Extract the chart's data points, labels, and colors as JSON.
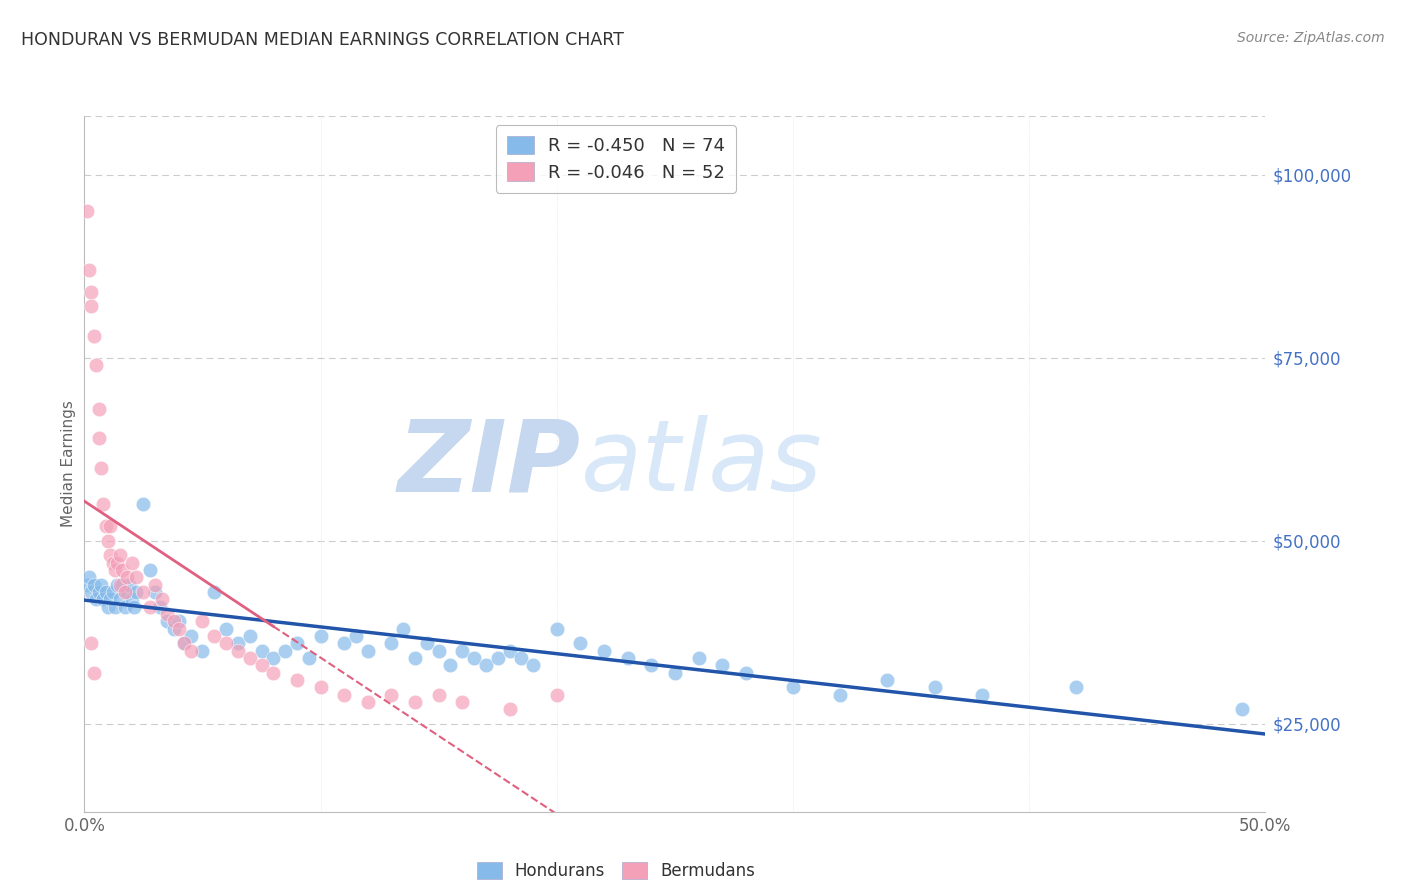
{
  "title": "HONDURAN VS BERMUDAN MEDIAN EARNINGS CORRELATION CHART",
  "source": "Source: ZipAtlas.com",
  "ylabel": "Median Earnings",
  "y_ticks": [
    25000,
    50000,
    75000,
    100000
  ],
  "y_tick_labels": [
    "$25,000",
    "$50,000",
    "$75,000",
    "$100,000"
  ],
  "xlim": [
    0.0,
    0.5
  ],
  "ylim": [
    13000,
    108000
  ],
  "legend_honduran": "R = -0.450   N = 74",
  "legend_bermudan": "R = -0.046   N = 52",
  "honduran_color": "#85BAEA",
  "bermudan_color": "#F4A0B8",
  "honduran_line_color": "#2255AA",
  "bermudan_line_color": "#E06080",
  "watermark_zip": "ZIP",
  "watermark_atlas": "atlas",
  "watermark_color": "#C5D8F0",
  "honduran_x": [
    0.001,
    0.002,
    0.003,
    0.004,
    0.005,
    0.006,
    0.007,
    0.008,
    0.009,
    0.01,
    0.011,
    0.012,
    0.013,
    0.014,
    0.015,
    0.016,
    0.017,
    0.018,
    0.019,
    0.02,
    0.021,
    0.022,
    0.025,
    0.028,
    0.03,
    0.032,
    0.035,
    0.038,
    0.04,
    0.042,
    0.045,
    0.05,
    0.055,
    0.06,
    0.065,
    0.07,
    0.075,
    0.08,
    0.085,
    0.09,
    0.095,
    0.1,
    0.11,
    0.115,
    0.12,
    0.13,
    0.135,
    0.14,
    0.145,
    0.15,
    0.155,
    0.16,
    0.165,
    0.17,
    0.175,
    0.18,
    0.185,
    0.19,
    0.2,
    0.21,
    0.22,
    0.23,
    0.24,
    0.25,
    0.26,
    0.27,
    0.28,
    0.3,
    0.32,
    0.34,
    0.36,
    0.38,
    0.42,
    0.49
  ],
  "honduran_y": [
    44000,
    45000,
    43000,
    44000,
    42000,
    43000,
    44000,
    42000,
    43000,
    41000,
    42000,
    43000,
    41000,
    44000,
    42000,
    44000,
    41000,
    43000,
    44000,
    42000,
    41000,
    43000,
    55000,
    46000,
    43000,
    41000,
    39000,
    38000,
    39000,
    36000,
    37000,
    35000,
    43000,
    38000,
    36000,
    37000,
    35000,
    34000,
    35000,
    36000,
    34000,
    37000,
    36000,
    37000,
    35000,
    36000,
    38000,
    34000,
    36000,
    35000,
    33000,
    35000,
    34000,
    33000,
    34000,
    35000,
    34000,
    33000,
    38000,
    36000,
    35000,
    34000,
    33000,
    32000,
    34000,
    33000,
    32000,
    30000,
    29000,
    31000,
    30000,
    29000,
    30000,
    27000
  ],
  "bermudan_x": [
    0.001,
    0.002,
    0.003,
    0.003,
    0.004,
    0.005,
    0.006,
    0.006,
    0.007,
    0.008,
    0.009,
    0.01,
    0.011,
    0.011,
    0.012,
    0.013,
    0.014,
    0.015,
    0.015,
    0.016,
    0.017,
    0.018,
    0.02,
    0.022,
    0.025,
    0.028,
    0.03,
    0.033,
    0.035,
    0.038,
    0.04,
    0.042,
    0.045,
    0.05,
    0.055,
    0.06,
    0.065,
    0.07,
    0.075,
    0.08,
    0.09,
    0.1,
    0.11,
    0.12,
    0.13,
    0.14,
    0.15,
    0.16,
    0.18,
    0.2,
    0.003,
    0.004
  ],
  "bermudan_y": [
    95000,
    87000,
    84000,
    82000,
    78000,
    74000,
    68000,
    64000,
    60000,
    55000,
    52000,
    50000,
    48000,
    52000,
    47000,
    46000,
    47000,
    44000,
    48000,
    46000,
    43000,
    45000,
    47000,
    45000,
    43000,
    41000,
    44000,
    42000,
    40000,
    39000,
    38000,
    36000,
    35000,
    39000,
    37000,
    36000,
    35000,
    34000,
    33000,
    32000,
    31000,
    30000,
    29000,
    28000,
    29000,
    28000,
    29000,
    28000,
    27000,
    29000,
    36000,
    32000
  ]
}
